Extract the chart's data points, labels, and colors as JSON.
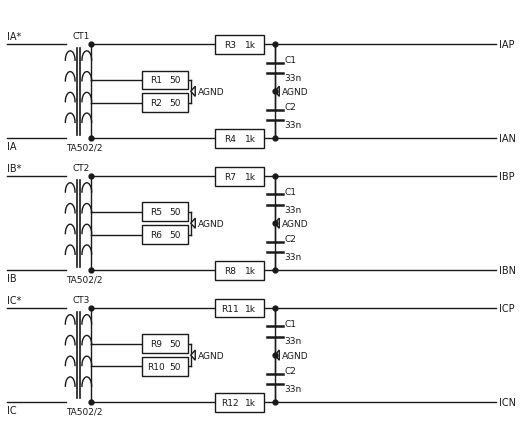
{
  "bg_color": "#ffffff",
  "line_color": "#1a1a1a",
  "sections": [
    {
      "y_top": 4.15,
      "y_bot": 3.15,
      "label_star": "IA*",
      "label_plain": "IA",
      "ct_label": "CT1",
      "ta_label": "TA502/2",
      "r1": "R1",
      "r1v": "50",
      "r2": "R2",
      "r2v": "50",
      "r3": "R3",
      "r3v": "1k",
      "r4": "R4",
      "r4v": "1k",
      "c1": "C1",
      "c1v": "33n",
      "c2": "C2",
      "c2v": "33n",
      "out_top": "IAP",
      "out_bot": "IAN"
    },
    {
      "y_top": 2.75,
      "y_bot": 1.75,
      "label_star": "IB*",
      "label_plain": "IB",
      "ct_label": "CT2",
      "ta_label": "TA502/2",
      "r1": "R5",
      "r1v": "50",
      "r2": "R6",
      "r2v": "50",
      "r3": "R7",
      "r3v": "1k",
      "r4": "R8",
      "r4v": "1k",
      "c1": "C1",
      "c1v": "33n",
      "c2": "C2",
      "c2v": "33n",
      "out_top": "IBP",
      "out_bot": "IBN"
    },
    {
      "y_top": 1.35,
      "y_bot": 0.35,
      "label_star": "IC*",
      "label_plain": "IC",
      "ct_label": "CT3",
      "ta_label": "TA502/2",
      "r1": "R9",
      "r1v": "50",
      "r2": "R10",
      "r2v": "50",
      "r3": "R11",
      "r3v": "1k",
      "r4": "R12",
      "r4v": "1k",
      "c1": "C1",
      "c1v": "33n",
      "c2": "C2",
      "c2v": "33n",
      "out_top": "ICP",
      "out_bot": "ICN"
    }
  ],
  "figsize": [
    5.22,
    4.39
  ],
  "dpi": 100,
  "xlim": [
    0,
    10.5
  ],
  "ylim": [
    0.0,
    4.6
  ]
}
